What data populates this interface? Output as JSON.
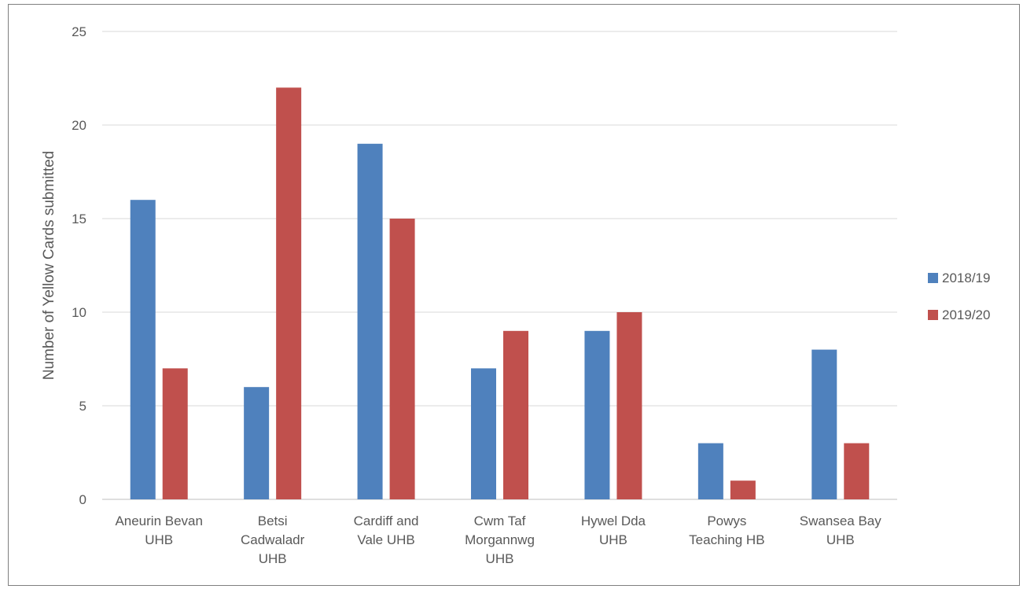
{
  "chart_data": {
    "type": "bar",
    "title": "",
    "xlabel": "",
    "ylabel": "Number of Yellow Cards submitted",
    "ylim": [
      0,
      25
    ],
    "yticks": [
      0,
      5,
      10,
      15,
      20,
      25
    ],
    "grid": true,
    "legend_position": "right",
    "categories": [
      [
        "Aneurin Bevan",
        "UHB"
      ],
      [
        "Betsi",
        "Cadwaladr",
        "UHB"
      ],
      [
        "Cardiff and",
        "Vale UHB"
      ],
      [
        "Cwm Taf",
        "Morgannwg",
        "UHB"
      ],
      [
        "Hywel Dda",
        "UHB"
      ],
      [
        "Powys",
        "Teaching HB"
      ],
      [
        "Swansea Bay",
        "UHB"
      ]
    ],
    "series": [
      {
        "name": "2018/19",
        "color": "#4f81bd",
        "values": [
          16,
          6,
          19,
          7,
          9,
          3,
          8
        ]
      },
      {
        "name": "2019/20",
        "color": "#c0504d",
        "values": [
          7,
          22,
          15,
          9,
          10,
          1,
          3
        ]
      }
    ]
  }
}
